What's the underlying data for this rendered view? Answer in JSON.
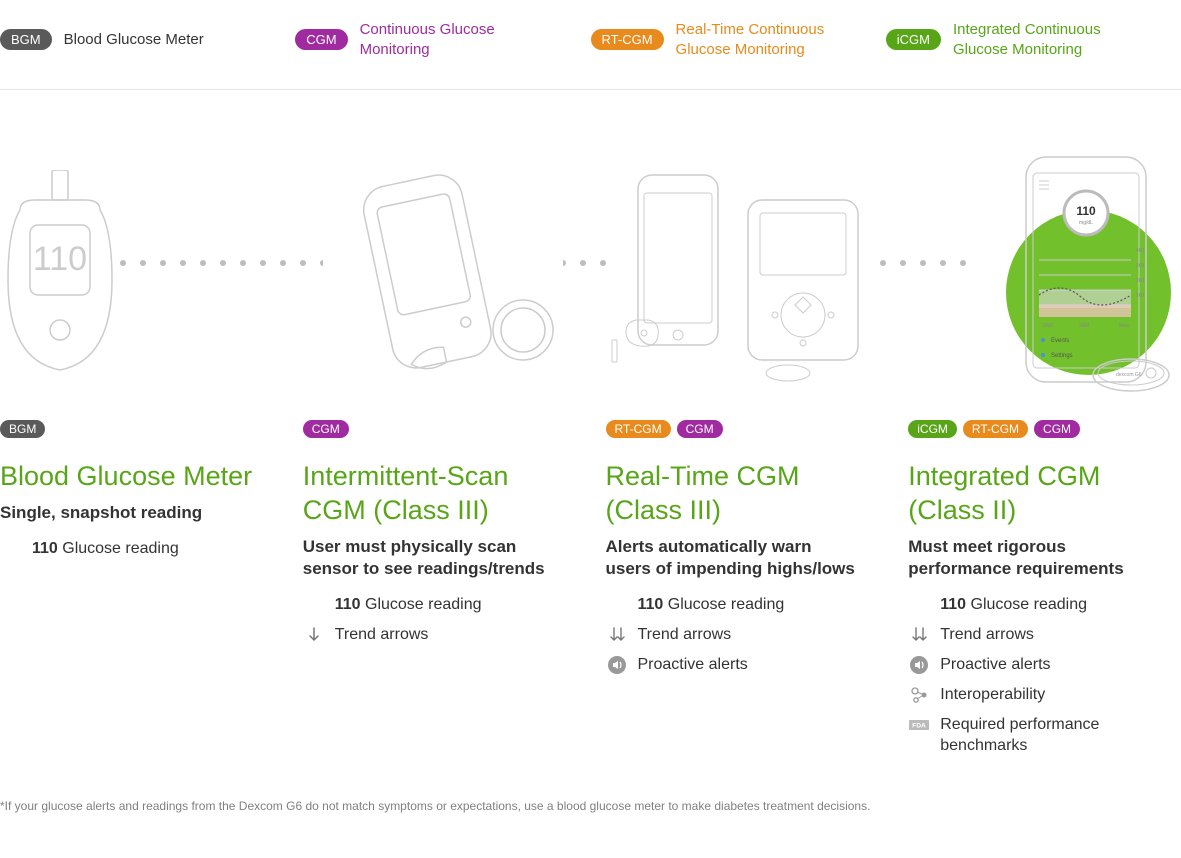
{
  "colors": {
    "bgm": "#5a5a5a",
    "cgm": "#a02ba0",
    "rtcgm": "#e88b1c",
    "icgm": "#58a618",
    "green_circle": "#72c02c",
    "title": "#58a618",
    "text": "#333333",
    "stroke": "#cccccc",
    "footnote": "#808080"
  },
  "legend": [
    {
      "badge": "BGM",
      "badge_color": "#5a5a5a",
      "label": "Blood Glucose Meter",
      "label_color": "#333333"
    },
    {
      "badge": "CGM",
      "badge_color": "#a02ba0",
      "label": "Continuous Glucose Monitoring",
      "label_color": "#a02ba0"
    },
    {
      "badge": "RT-CGM",
      "badge_color": "#e88b1c",
      "label": "Real-Time Continuous Glucose Monitoring",
      "label_color": "#e88b1c"
    },
    {
      "badge": "iCGM",
      "badge_color": "#58a618",
      "label": "Integrated Continuous Glucose Monitoring",
      "label_color": "#58a618"
    }
  ],
  "devices": [
    {
      "id": "bgm",
      "badges": [
        {
          "text": "BGM",
          "color": "#5a5a5a"
        }
      ],
      "title": "Blood Glucose Meter",
      "subtitle": "Single, snapshot reading",
      "features": [
        {
          "icon": "reading",
          "bold": "110",
          "text": " Glucose reading"
        }
      ]
    },
    {
      "id": "iscgm",
      "badges": [
        {
          "text": "CGM",
          "color": "#a02ba0"
        }
      ],
      "title": "Intermittent-Scan CGM (Class III)",
      "subtitle": "User must physically scan sensor to see readings/trends",
      "features": [
        {
          "icon": "reading",
          "bold": "110",
          "text": " Glucose reading"
        },
        {
          "icon": "arrow1",
          "text": "Trend arrows"
        }
      ]
    },
    {
      "id": "rtcgm",
      "badges": [
        {
          "text": "RT-CGM",
          "color": "#e88b1c"
        },
        {
          "text": "CGM",
          "color": "#a02ba0"
        }
      ],
      "title": "Real-Time CGM (Class III)",
      "subtitle": "Alerts automatically warn users of impending highs/lows",
      "features": [
        {
          "icon": "reading",
          "bold": "110",
          "text": " Glucose reading"
        },
        {
          "icon": "arrow2",
          "text": "Trend arrows"
        },
        {
          "icon": "alert",
          "text": "Proactive alerts"
        }
      ]
    },
    {
      "id": "icgm",
      "badges": [
        {
          "text": "iCGM",
          "color": "#58a618"
        },
        {
          "text": "RT-CGM",
          "color": "#e88b1c"
        },
        {
          "text": "CGM",
          "color": "#a02ba0"
        }
      ],
      "title": "Integrated CGM (Class II)",
      "subtitle": "Must meet rigorous performance requirements",
      "features": [
        {
          "icon": "reading",
          "bold": "110",
          "text": " Glucose reading"
        },
        {
          "icon": "arrow2",
          "text": "Trend arrows"
        },
        {
          "icon": "alert",
          "text": "Proactive alerts"
        },
        {
          "icon": "interop",
          "text": "Interoperability"
        },
        {
          "icon": "fda",
          "text": "Required performance benchmarks"
        }
      ]
    }
  ],
  "phone_reading": "110",
  "phone_unit": "mg/dL",
  "phone_axis": [
    "400",
    "300",
    "200",
    "100"
  ],
  "phone_xlabels": [
    "9AM",
    "3AM",
    "Now"
  ],
  "phone_menu": [
    "Events",
    "Settings"
  ],
  "footnote": "*If your glucose alerts and readings from the Dexcom G6 do not match symptoms or expectations, use a blood glucose meter to make diabetes treatment decisions."
}
